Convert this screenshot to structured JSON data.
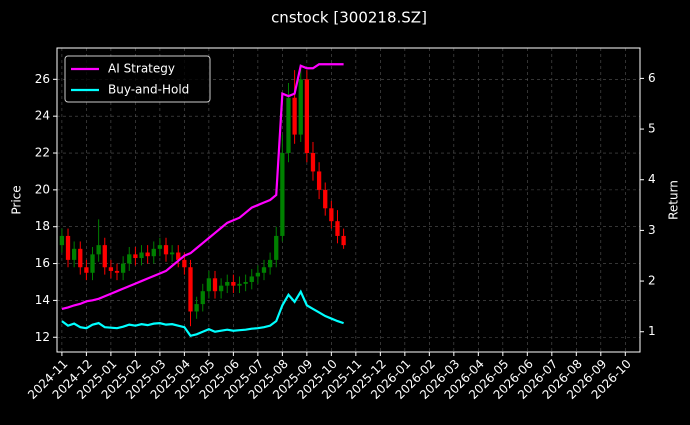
{
  "chart_data": {
    "type": "candlestick",
    "title": "cnstock [300218.SZ]",
    "y_label": "Price",
    "y2_label": "Return",
    "x": [
      0,
      0.25,
      0.5,
      0.75,
      1,
      1.25,
      1.5,
      1.75,
      2,
      2.25,
      2.5,
      2.75,
      3,
      3.25,
      3.5,
      3.75,
      4,
      4.25,
      4.5,
      4.75,
      5,
      5.25,
      5.5,
      5.75,
      6,
      6.25,
      6.5,
      6.75,
      7,
      7.25,
      7.5,
      7.75,
      8,
      8.25,
      8.5,
      8.75,
      9,
      9.25,
      9.5,
      9.75,
      10,
      10.25,
      10.5,
      10.75,
      11,
      11.25,
      11.5
    ],
    "open": [
      17.0,
      17.5,
      16.2,
      16.8,
      15.8,
      15.5,
      16.5,
      17.0,
      15.8,
      15.6,
      15.5,
      16.0,
      16.5,
      16.3,
      16.6,
      16.4,
      16.8,
      17.0,
      16.5,
      16.6,
      16.2,
      15.8,
      13.4,
      13.8,
      14.5,
      15.2,
      14.5,
      14.8,
      15.0,
      14.8,
      14.9,
      15.0,
      15.3,
      15.5,
      15.8,
      16.2,
      17.5,
      22.0,
      25.0,
      23.0,
      26.0,
      22.0,
      21.0,
      20.0,
      19.0,
      18.3,
      17.5
    ],
    "high": [
      17.9,
      17.9,
      17.2,
      17.2,
      16.2,
      16.9,
      18.4,
      17.4,
      16.2,
      16.0,
      16.4,
      16.9,
      16.9,
      17.0,
      17.0,
      17.2,
      17.4,
      17.4,
      17.0,
      17.0,
      16.6,
      16.2,
      14.2,
      14.9,
      15.6,
      15.6,
      15.2,
      15.4,
      15.4,
      15.3,
      15.4,
      15.7,
      15.9,
      16.2,
      16.6,
      18.0,
      23.0,
      25.8,
      26.5,
      26.8,
      26.5,
      22.6,
      21.5,
      20.4,
      19.4,
      18.9,
      17.9
    ],
    "low": [
      16.6,
      15.8,
      15.8,
      15.4,
      15.1,
      15.1,
      16.1,
      15.4,
      15.2,
      15.1,
      15.1,
      15.6,
      15.9,
      15.9,
      16.0,
      16.0,
      16.4,
      16.1,
      16.1,
      15.8,
      15.4,
      12.6,
      13.0,
      13.4,
      14.1,
      14.1,
      14.1,
      14.4,
      14.4,
      14.4,
      14.5,
      14.6,
      14.9,
      15.1,
      15.4,
      15.8,
      17.2,
      21.5,
      22.5,
      22.6,
      21.5,
      20.5,
      19.5,
      18.6,
      17.9,
      17.1,
      16.8
    ],
    "close": [
      17.5,
      16.2,
      16.8,
      15.8,
      15.5,
      16.5,
      17.0,
      15.8,
      15.6,
      15.5,
      16.0,
      16.5,
      16.3,
      16.6,
      16.4,
      16.8,
      17.0,
      16.5,
      16.6,
      16.2,
      15.8,
      13.4,
      13.8,
      14.5,
      15.2,
      14.5,
      14.8,
      15.0,
      14.8,
      14.9,
      15.0,
      15.3,
      15.5,
      15.8,
      16.2,
      17.5,
      22.0,
      25.0,
      23.0,
      26.0,
      22.0,
      21.0,
      20.0,
      19.0,
      18.3,
      17.5,
      17.0
    ],
    "up_color": "#008000",
    "down_color": "#ff0000",
    "series": [
      {
        "name": "AI Strategy",
        "color": "#ff00ff",
        "axis": "y2",
        "values": [
          1.45,
          1.48,
          1.52,
          1.55,
          1.6,
          1.62,
          1.65,
          1.7,
          1.75,
          1.8,
          1.85,
          1.9,
          1.95,
          2.0,
          2.05,
          2.1,
          2.15,
          2.2,
          2.3,
          2.4,
          2.5,
          2.55,
          2.65,
          2.75,
          2.85,
          2.95,
          3.05,
          3.15,
          3.2,
          3.25,
          3.35,
          3.45,
          3.5,
          3.55,
          3.6,
          3.7,
          5.7,
          5.65,
          5.7,
          6.25,
          6.2,
          6.2,
          6.28,
          6.28,
          6.28,
          6.28,
          6.28
        ]
      },
      {
        "name": "Buy-and-Hold",
        "color": "#00ffff",
        "axis": "y2",
        "values": [
          1.21,
          1.12,
          1.16,
          1.09,
          1.07,
          1.14,
          1.17,
          1.09,
          1.08,
          1.07,
          1.1,
          1.14,
          1.12,
          1.15,
          1.13,
          1.16,
          1.17,
          1.14,
          1.15,
          1.12,
          1.09,
          0.92,
          0.95,
          1.0,
          1.05,
          1.0,
          1.02,
          1.04,
          1.02,
          1.03,
          1.04,
          1.06,
          1.07,
          1.09,
          1.12,
          1.21,
          1.52,
          1.73,
          1.59,
          1.79,
          1.52,
          1.45,
          1.38,
          1.31,
          1.26,
          1.21,
          1.17
        ]
      }
    ],
    "xlim": [
      -0.2,
      23.6
    ],
    "xticks": [
      {
        "value": 0,
        "label": "2024-11"
      },
      {
        "value": 1,
        "label": "2024-12"
      },
      {
        "value": 2,
        "label": "2025-01"
      },
      {
        "value": 3,
        "label": "2025-02"
      },
      {
        "value": 4,
        "label": "2025-03"
      },
      {
        "value": 5,
        "label": "2025-04"
      },
      {
        "value": 6,
        "label": "2025-05"
      },
      {
        "value": 7,
        "label": "2025-06"
      },
      {
        "value": 8,
        "label": "2025-07"
      },
      {
        "value": 9,
        "label": "2025-08"
      },
      {
        "value": 10,
        "label": "2025-09"
      },
      {
        "value": 11,
        "label": "2025-10"
      },
      {
        "value": 12,
        "label": "2025-11"
      },
      {
        "value": 13,
        "label": "2025-12"
      },
      {
        "value": 14,
        "label": "2026-01"
      },
      {
        "value": 15,
        "label": "2026-02"
      },
      {
        "value": 16,
        "label": "2026-03"
      },
      {
        "value": 17,
        "label": "2026-04"
      },
      {
        "value": 18,
        "label": "2026-05"
      },
      {
        "value": 19,
        "label": "2026-06"
      },
      {
        "value": 20,
        "label": "2026-07"
      },
      {
        "value": 21,
        "label": "2026-08"
      },
      {
        "value": 22,
        "label": "2026-09"
      },
      {
        "value": 23,
        "label": "2026-10"
      }
    ],
    "ylim": [
      11.2,
      27.7
    ],
    "yticks": [
      12,
      14,
      16,
      18,
      20,
      22,
      24,
      26
    ],
    "y2lim": [
      0.6,
      6.6
    ],
    "y2ticks": [
      1,
      2,
      3,
      4,
      5,
      6
    ],
    "grid": true,
    "legend": "upper-left"
  }
}
